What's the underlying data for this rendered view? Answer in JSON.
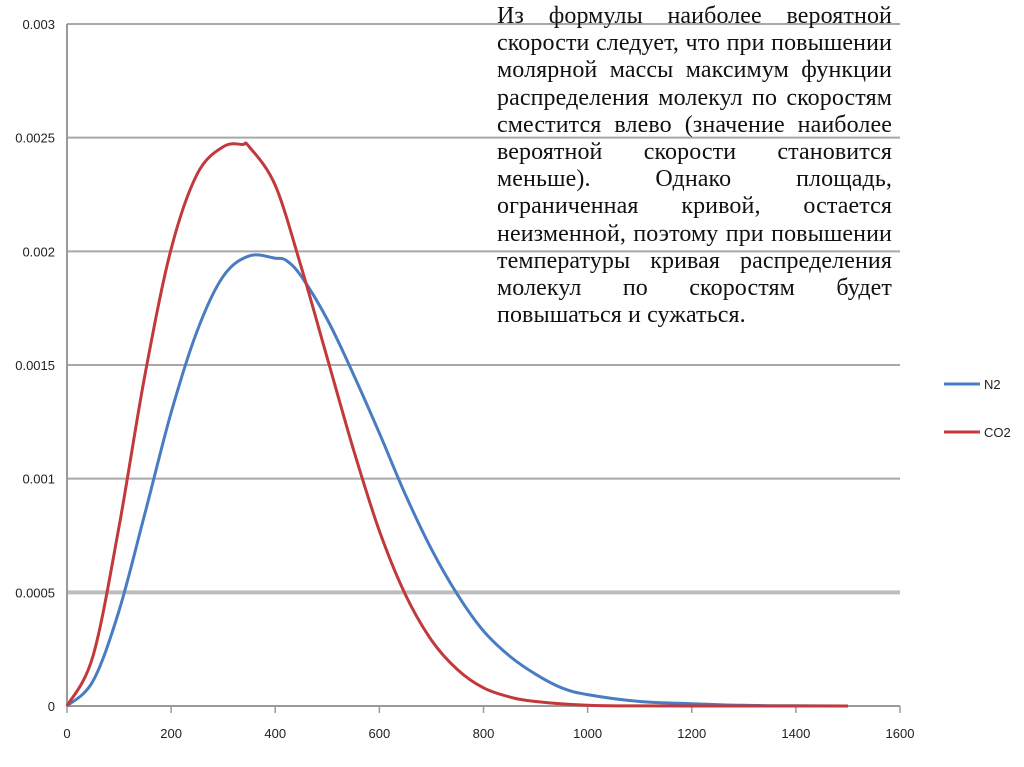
{
  "overlay": {
    "paragraph": "Из формулы наиболее вероятной скорости следует, что при повышении молярной массы максимум функции распределения молекул по скоростям сместится влево (значение наиболее вероятной скорости становится меньше). Однако площадь, ограниченная кривой, остается неизменной, поэтому при повышении температуры кривая распределения молекул по скоростям будет повышаться и сужаться."
  },
  "chart_data": {
    "type": "line",
    "title": "",
    "xlabel": "",
    "ylabel": "",
    "xlim": [
      0,
      1600
    ],
    "ylim": [
      0,
      0.003
    ],
    "x_ticks": [
      "0",
      "200",
      "400",
      "600",
      "800",
      "1000",
      "1200",
      "1400",
      "1600"
    ],
    "y_ticks": [
      "0",
      "0.0005",
      "0.001",
      "0.0015",
      "0.002",
      "0.0025",
      "0.003"
    ],
    "grid": "horizontal",
    "legend_position": "right",
    "series": [
      {
        "name": "N2",
        "color": "#4a7cc2",
        "x": [
          0,
          50,
          100,
          150,
          200,
          250,
          300,
          350,
          400,
          421,
          450,
          500,
          550,
          600,
          650,
          700,
          750,
          800,
          850,
          900,
          950,
          1000,
          1100,
          1200,
          1300,
          1400,
          1500
        ],
        "y": [
          0,
          0.00011,
          0.00042,
          0.00085,
          0.00129,
          0.00165,
          0.00189,
          0.00198,
          0.00197,
          0.00196,
          0.00189,
          0.0017,
          0.00146,
          0.0012,
          0.00093,
          0.00069,
          0.00049,
          0.00033,
          0.00022,
          0.00014,
          8e-05,
          5e-05,
          2e-05,
          1e-05,
          3e-06,
          1e-06,
          0
        ]
      },
      {
        "name": "CO2",
        "color": "#c2393b",
        "x": [
          0,
          50,
          100,
          150,
          200,
          250,
          300,
          337,
          350,
          400,
          450,
          500,
          550,
          600,
          650,
          700,
          750,
          800,
          850,
          900,
          1000,
          1100,
          1200,
          1300,
          1400,
          1500
        ],
        "y": [
          0,
          0.00022,
          0.00079,
          0.00146,
          0.00201,
          0.00234,
          0.00246,
          0.00247,
          0.00246,
          0.00229,
          0.00193,
          0.00153,
          0.00113,
          0.00077,
          0.00049,
          0.00029,
          0.00016,
          8e-05,
          4e-05,
          2e-05,
          3e-06,
          5e-07,
          0,
          0,
          0,
          0
        ]
      }
    ]
  }
}
